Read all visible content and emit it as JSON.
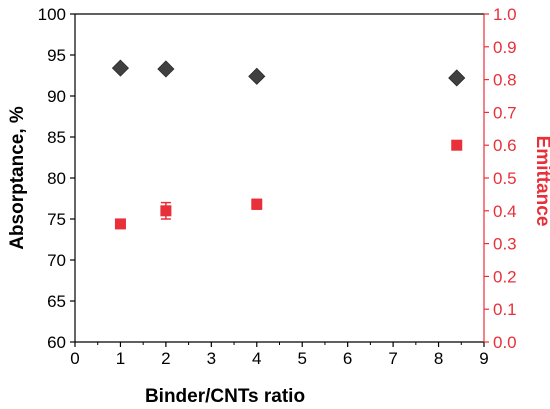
{
  "chart_data": {
    "type": "scatter",
    "xlabel": "Binder/CNTs ratio",
    "ylabel_left": "Absorptance, %",
    "ylabel_right": "Emittance",
    "xlim": [
      0,
      9
    ],
    "ylim_left": [
      60,
      100
    ],
    "ylim_right": [
      0.0,
      1.0
    ],
    "x_ticks": [
      "0",
      "1",
      "2",
      "3",
      "4",
      "5",
      "6",
      "7",
      "8",
      "9"
    ],
    "y_left_ticks": [
      "60",
      "65",
      "70",
      "75",
      "80",
      "85",
      "90",
      "95",
      "100"
    ],
    "y_right_ticks": [
      "0.0",
      "0.1",
      "0.2",
      "0.3",
      "0.4",
      "0.5",
      "0.6",
      "0.7",
      "0.8",
      "0.9",
      "1.0"
    ],
    "grid": false,
    "series": [
      {
        "axis": "left",
        "marker": "diamond",
        "color": "#404040",
        "points": [
          {
            "x": 1,
            "y": 93.4
          },
          {
            "x": 2,
            "y": 93.3
          },
          {
            "x": 4,
            "y": 92.4
          },
          {
            "x": 8.4,
            "y": 92.2
          }
        ]
      },
      {
        "axis": "right",
        "marker": "square",
        "color": "#e8303a",
        "points": [
          {
            "x": 1,
            "y": 0.36,
            "err": 0.01
          },
          {
            "x": 2,
            "y": 0.4,
            "err": 0.025
          },
          {
            "x": 4,
            "y": 0.42,
            "err": 0.015
          },
          {
            "x": 8.4,
            "y": 0.6,
            "err": 0.005
          }
        ]
      }
    ]
  }
}
